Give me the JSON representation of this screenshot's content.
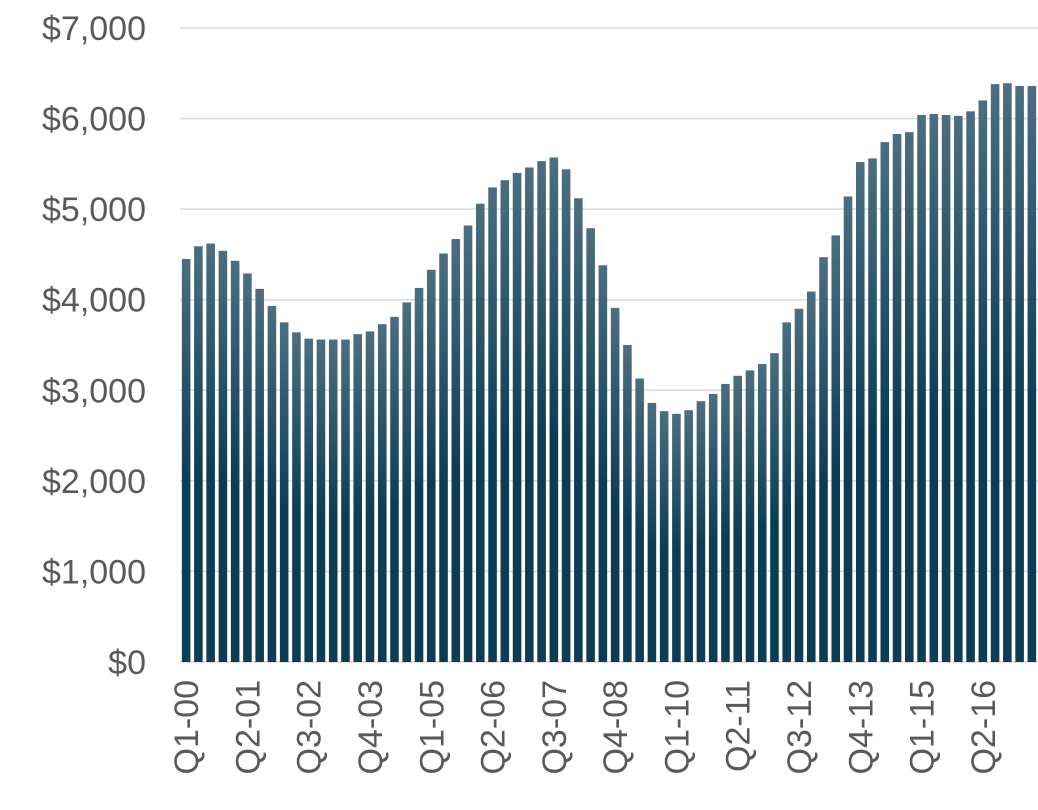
{
  "chart_data": {
    "type": "bar",
    "categories": [
      "Q1-00",
      null,
      null,
      null,
      null,
      "Q2-01",
      null,
      null,
      null,
      null,
      "Q3-02",
      null,
      null,
      null,
      null,
      "Q4-03",
      null,
      null,
      null,
      null,
      "Q1-05",
      null,
      null,
      null,
      null,
      "Q2-06",
      null,
      null,
      null,
      null,
      "Q3-07",
      null,
      null,
      null,
      null,
      "Q4-08",
      null,
      null,
      null,
      null,
      "Q1-10",
      null,
      null,
      null,
      null,
      "Q2-11",
      null,
      null,
      null,
      null,
      "Q3-12",
      null,
      null,
      null,
      null,
      "Q4-13",
      null,
      null,
      null,
      null,
      "Q1-15",
      null,
      null,
      null,
      null,
      "Q2-16",
      null,
      null,
      null,
      null
    ],
    "values": [
      4450,
      4590,
      4620,
      4540,
      4430,
      4290,
      4120,
      3930,
      3750,
      3640,
      3570,
      3560,
      3560,
      3560,
      3620,
      3650,
      3730,
      3810,
      3970,
      4130,
      4330,
      4510,
      4670,
      4820,
      5060,
      5240,
      5320,
      5400,
      5460,
      5530,
      5570,
      5440,
      5120,
      4790,
      4380,
      3910,
      3500,
      3130,
      2860,
      2770,
      2740,
      2780,
      2880,
      2960,
      3070,
      3160,
      3220,
      3290,
      3410,
      3750,
      3900,
      4090,
      4470,
      4710,
      5140,
      5520,
      5560,
      5740,
      5830,
      5850,
      6040,
      6050,
      6040,
      6030,
      6080,
      6200,
      6380,
      6390,
      6360,
      6360
    ],
    "color": "#0d3d55",
    "ylim": [
      0,
      7000
    ],
    "yticks": [
      {
        "value": 0,
        "label": "$0"
      },
      {
        "value": 1000,
        "label": "$1,000"
      },
      {
        "value": 2000,
        "label": "$2,000"
      },
      {
        "value": 3000,
        "label": "$3,000"
      },
      {
        "value": 4000,
        "label": "$4,000"
      },
      {
        "value": 5000,
        "label": "$5,000"
      },
      {
        "value": 6000,
        "label": "$6,000"
      },
      {
        "value": 7000,
        "label": "$7,000"
      }
    ],
    "grid": true
  }
}
